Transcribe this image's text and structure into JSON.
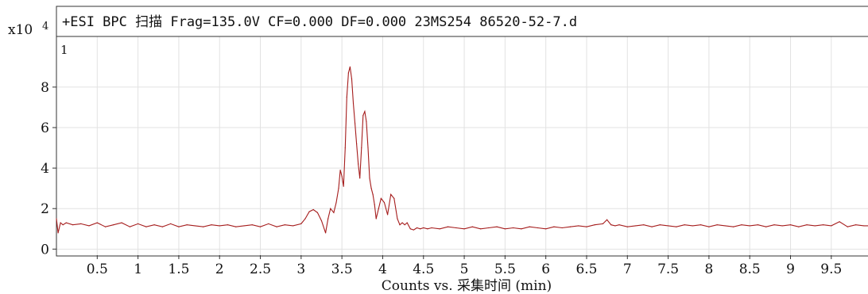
{
  "chart_data": {
    "type": "line",
    "title": "+ESI BPC 扫描 Frag=135.0V CF=0.000 DF=0.000 23MS254 86520-52-7.d",
    "xlabel": "Counts vs. 采集时间 (min)",
    "ylabel": "",
    "y_multiplier_label": "x10",
    "y_exponent": "4",
    "panel_label": "1",
    "xlim": [
      0,
      9.95
    ],
    "ylim": [
      -0.3,
      10.5
    ],
    "grid": true,
    "x_ticks": [
      "0.5",
      "1",
      "1.5",
      "2",
      "2.5",
      "3",
      "3.5",
      "4",
      "4.5",
      "5",
      "5.5",
      "6",
      "6.5",
      "7",
      "7.5",
      "8",
      "8.5",
      "9",
      "9.5"
    ],
    "y_ticks": [
      "0",
      "2",
      "4",
      "6",
      "8"
    ],
    "colors": {
      "series": "#a51c1c",
      "grid": "#e2e2e2",
      "frame": "#333333"
    },
    "series": [
      {
        "x": [
          0.0,
          0.02,
          0.05,
          0.08,
          0.12,
          0.2,
          0.3,
          0.4,
          0.5,
          0.6,
          0.7,
          0.8,
          0.9,
          1.0,
          1.1,
          1.2,
          1.3,
          1.4,
          1.5,
          1.6,
          1.7,
          1.8,
          1.9,
          2.0,
          2.1,
          2.2,
          2.3,
          2.4,
          2.5,
          2.6,
          2.7,
          2.8,
          2.9,
          3.0,
          3.05,
          3.1,
          3.15,
          3.2,
          3.25,
          3.3,
          3.33,
          3.36,
          3.4,
          3.43,
          3.46,
          3.48,
          3.5,
          3.52,
          3.54,
          3.56,
          3.58,
          3.6,
          3.62,
          3.64,
          3.66,
          3.68,
          3.7,
          3.72,
          3.74,
          3.76,
          3.78,
          3.8,
          3.82,
          3.84,
          3.86,
          3.88,
          3.9,
          3.92,
          3.95,
          3.98,
          4.02,
          4.06,
          4.1,
          4.14,
          4.18,
          4.21,
          4.24,
          4.27,
          4.3,
          4.34,
          4.38,
          4.42,
          4.46,
          4.5,
          4.55,
          4.6,
          4.7,
          4.8,
          4.9,
          5.0,
          5.1,
          5.2,
          5.3,
          5.4,
          5.5,
          5.6,
          5.7,
          5.8,
          5.9,
          6.0,
          6.1,
          6.2,
          6.3,
          6.4,
          6.5,
          6.6,
          6.7,
          6.75,
          6.8,
          6.85,
          6.9,
          7.0,
          7.1,
          7.2,
          7.3,
          7.4,
          7.5,
          7.6,
          7.7,
          7.8,
          7.9,
          8.0,
          8.1,
          8.2,
          8.3,
          8.4,
          8.5,
          8.6,
          8.7,
          8.8,
          8.9,
          9.0,
          9.1,
          9.2,
          9.3,
          9.4,
          9.5,
          9.6,
          9.7,
          9.8,
          9.9,
          9.95
        ],
        "y": [
          1.5,
          0.8,
          1.3,
          1.2,
          1.3,
          1.2,
          1.25,
          1.15,
          1.3,
          1.1,
          1.2,
          1.3,
          1.1,
          1.25,
          1.1,
          1.2,
          1.1,
          1.25,
          1.1,
          1.2,
          1.15,
          1.1,
          1.2,
          1.15,
          1.2,
          1.1,
          1.15,
          1.2,
          1.1,
          1.25,
          1.1,
          1.2,
          1.15,
          1.25,
          1.5,
          1.85,
          1.95,
          1.8,
          1.4,
          0.8,
          1.5,
          2.0,
          1.8,
          2.3,
          3.0,
          3.9,
          3.6,
          3.1,
          5.0,
          7.5,
          8.7,
          9.0,
          8.4,
          7.2,
          6.2,
          5.2,
          4.2,
          3.5,
          5.0,
          6.6,
          6.8,
          6.3,
          5.0,
          3.5,
          3.0,
          2.7,
          2.2,
          1.5,
          2.0,
          2.5,
          2.3,
          1.7,
          2.7,
          2.5,
          1.5,
          1.2,
          1.3,
          1.2,
          1.3,
          1.0,
          0.95,
          1.05,
          1.0,
          1.05,
          1.0,
          1.05,
          1.0,
          1.1,
          1.05,
          1.0,
          1.1,
          1.0,
          1.05,
          1.1,
          1.0,
          1.05,
          1.0,
          1.1,
          1.05,
          1.0,
          1.1,
          1.05,
          1.1,
          1.15,
          1.1,
          1.2,
          1.25,
          1.45,
          1.2,
          1.15,
          1.2,
          1.1,
          1.15,
          1.2,
          1.1,
          1.2,
          1.15,
          1.1,
          1.2,
          1.15,
          1.2,
          1.1,
          1.2,
          1.15,
          1.1,
          1.2,
          1.15,
          1.2,
          1.1,
          1.2,
          1.15,
          1.2,
          1.1,
          1.2,
          1.15,
          1.2,
          1.15,
          1.35,
          1.1,
          1.2,
          1.15,
          1.15
        ]
      }
    ]
  }
}
